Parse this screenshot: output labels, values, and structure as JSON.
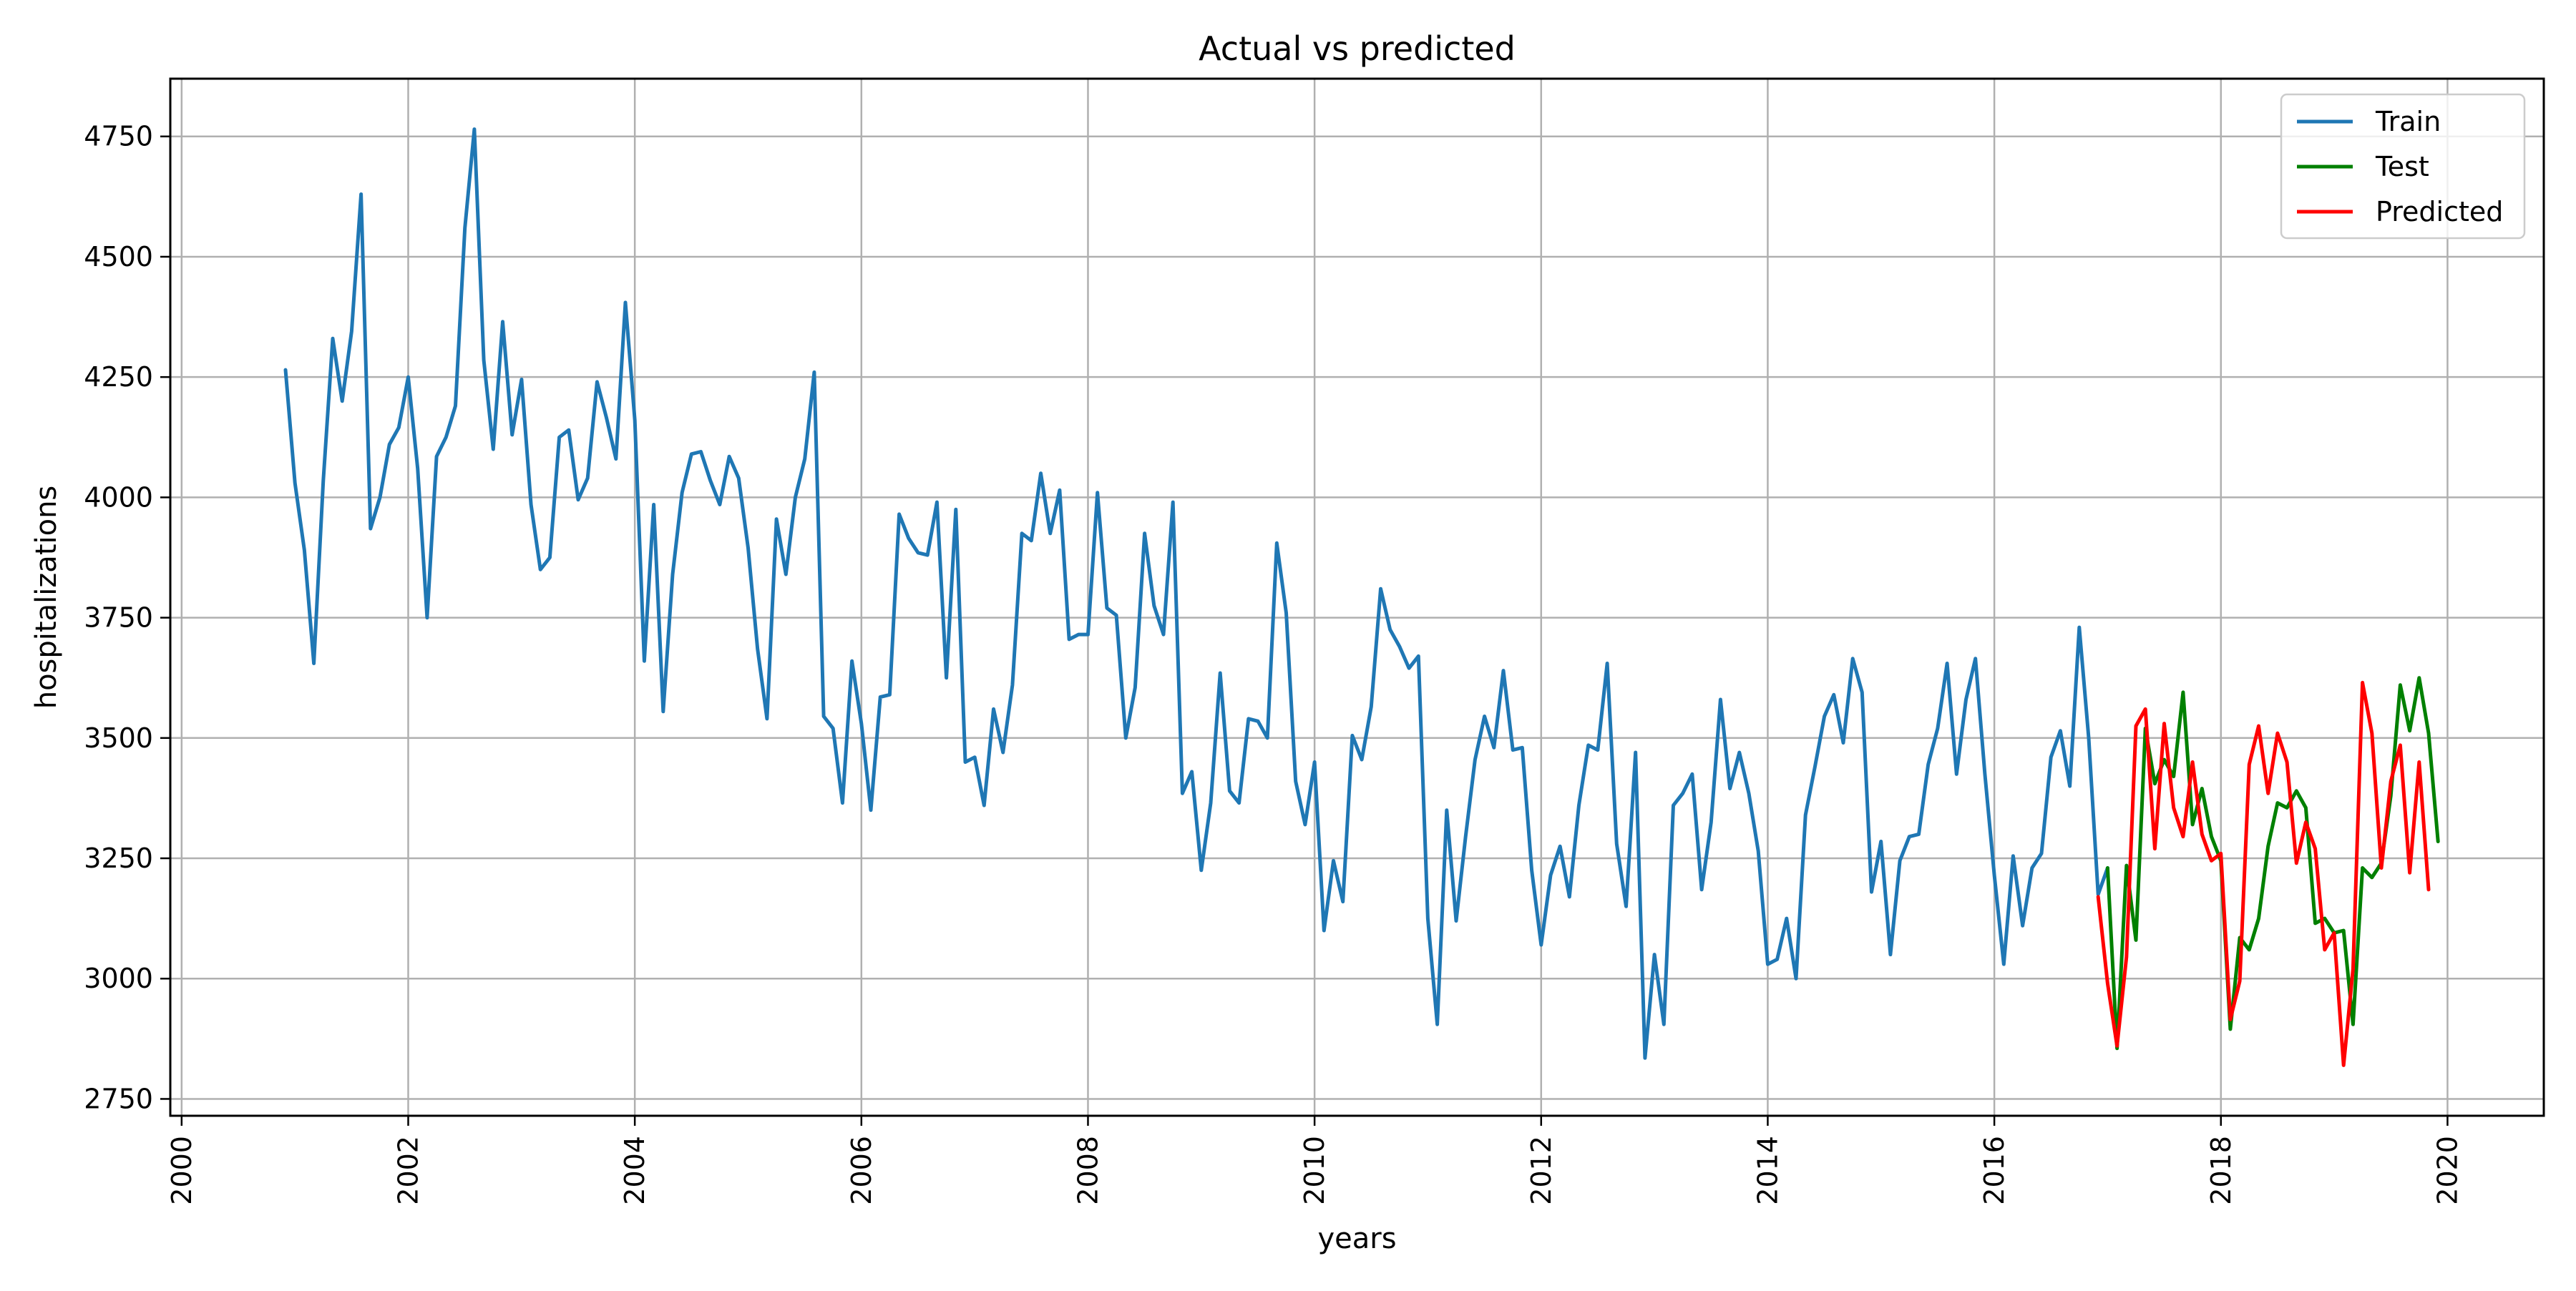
{
  "chart_data": {
    "type": "line",
    "title": "Actual vs predicted",
    "xlabel": "years",
    "ylabel": "hospitalizations",
    "xlim": [
      1999.9,
      2020.85
    ],
    "ylim": [
      2715,
      4870
    ],
    "x_ticks": [
      2000,
      2002,
      2004,
      2006,
      2008,
      2010,
      2012,
      2014,
      2016,
      2018,
      2020
    ],
    "x_tick_labels": [
      "2000",
      "2002",
      "2004",
      "2006",
      "2008",
      "2010",
      "2012",
      "2014",
      "2016",
      "2018",
      "2020"
    ],
    "y_ticks": [
      2750,
      3000,
      3250,
      3500,
      3750,
      4000,
      4250,
      4500,
      4750
    ],
    "y_tick_labels": [
      "2750",
      "3000",
      "3250",
      "3500",
      "3750",
      "4000",
      "4250",
      "4500",
      "4750"
    ],
    "grid": true,
    "legend": {
      "position": "upper-right",
      "entries": [
        "Train",
        "Test",
        "Predicted"
      ]
    },
    "x_start": 2000.917,
    "x_step": 0.08333,
    "series": [
      {
        "name": "Train",
        "color": "#1f77b4",
        "start_index": 0,
        "values": [
          4265,
          4030,
          3890,
          3655,
          4035,
          4330,
          4200,
          4345,
          4630,
          3935,
          4000,
          4110,
          4145,
          4250,
          4060,
          3750,
          4085,
          4125,
          4190,
          4560,
          4765,
          4285,
          4100,
          4365,
          4130,
          4245,
          3985,
          3850,
          3875,
          4125,
          4140,
          3995,
          4040,
          4240,
          4165,
          4080,
          4405,
          4160,
          3660,
          3985,
          3555,
          3840,
          4010,
          4090,
          4095,
          4035,
          3985,
          4085,
          4040,
          3895,
          3685,
          3540,
          3955,
          3840,
          4000,
          4080,
          4260,
          3545,
          3520,
          3365,
          3660,
          3530,
          3350,
          3585,
          3590,
          3965,
          3915,
          3885,
          3880,
          3990,
          3625,
          3975,
          3450,
          3460,
          3360,
          3560,
          3470,
          3610,
          3925,
          3910,
          4050,
          3925,
          4015,
          3705,
          3715,
          3715,
          4010,
          3770,
          3755,
          3500,
          3605,
          3925,
          3775,
          3715,
          3990,
          3385,
          3430,
          3225,
          3365,
          3635,
          3390,
          3365,
          3540,
          3535,
          3500,
          3905,
          3760,
          3410,
          3320,
          3450,
          3100,
          3245,
          3160,
          3505,
          3455,
          3565,
          3810,
          3725,
          3690,
          3645,
          3670,
          3125,
          2905,
          3350,
          3120,
          3295,
          3455,
          3545,
          3480,
          3640,
          3475,
          3480,
          3225,
          3070,
          3215,
          3275,
          3170,
          3360,
          3485,
          3475,
          3655,
          3280,
          3150,
          3470,
          2835,
          3050,
          2905,
          3360,
          3385,
          3425,
          3185,
          3325,
          3580,
          3395,
          3470,
          3385,
          3265,
          3030,
          3040,
          3125,
          3000,
          3340,
          3440,
          3545,
          3590,
          3490,
          3665,
          3595,
          3180,
          3285,
          3050,
          3245,
          3295,
          3300,
          3445,
          3520,
          3655,
          3425,
          3580,
          3665,
          3425,
          3215,
          3030,
          3255,
          3110,
          3230,
          3260,
          3460,
          3515,
          3400,
          3730,
          3500,
          3175,
          3230
        ]
      },
      {
        "name": "Test",
        "color": "#008000",
        "start_index": 193,
        "values": [
          3230,
          2855,
          3235,
          3080,
          3520,
          3405,
          3455,
          3420,
          3595,
          3320,
          3395,
          3295,
          3245,
          2895,
          3085,
          3060,
          3125,
          3275,
          3365,
          3355,
          3390,
          3355,
          3115,
          3125,
          3095,
          3100,
          2905,
          3230,
          3210,
          3240,
          3380,
          3610,
          3515,
          3625,
          3510,
          3285
        ]
      },
      {
        "name": "Predicted",
        "color": "#ff0000",
        "start_index": 192,
        "values": [
          3170,
          2990,
          2860,
          3045,
          3525,
          3560,
          3270,
          3530,
          3355,
          3295,
          3450,
          3300,
          3245,
          3260,
          2915,
          2995,
          3445,
          3525,
          3385,
          3510,
          3450,
          3240,
          3325,
          3270,
          3060,
          3095,
          2820,
          3020,
          3615,
          3510,
          3230,
          3410,
          3485,
          3220,
          3450,
          3185
        ]
      }
    ]
  }
}
